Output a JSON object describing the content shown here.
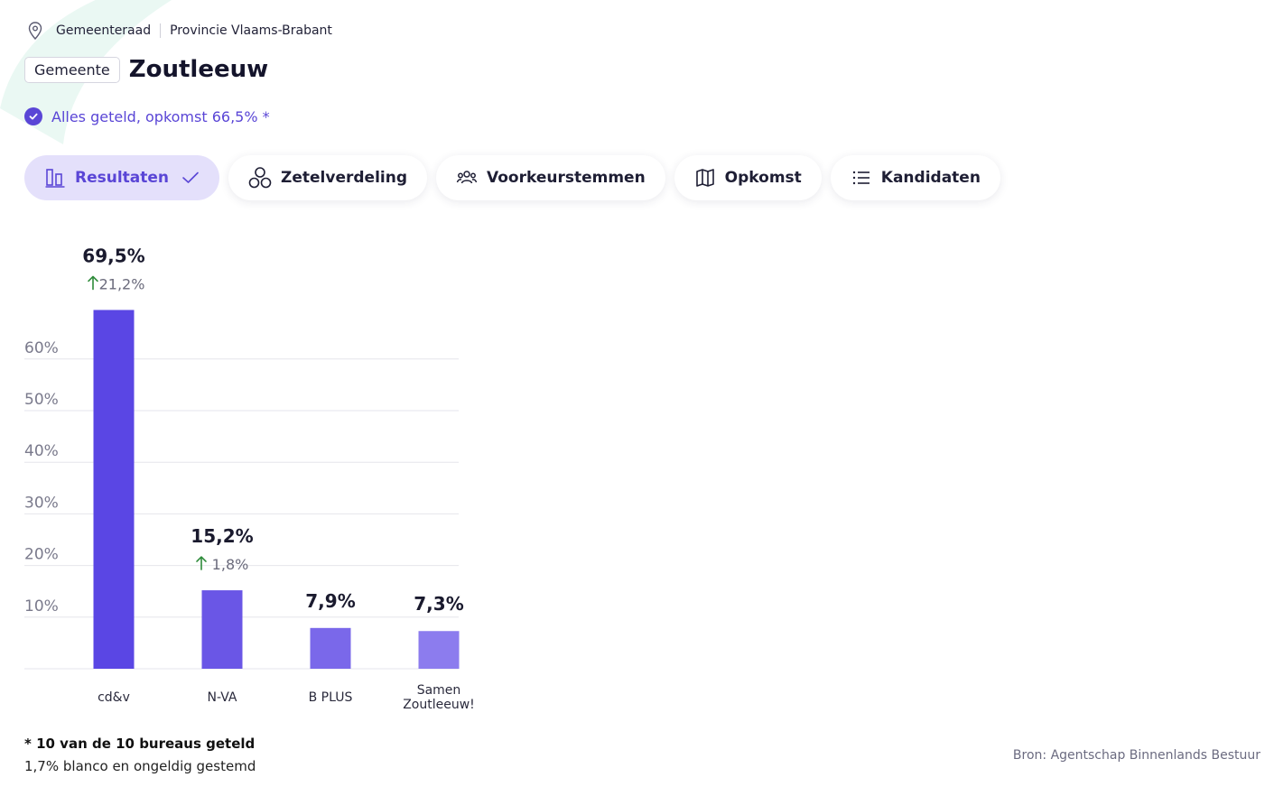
{
  "breadcrumb": {
    "level": "Gemeenteraad",
    "region": "Provincie Vlaams-Brabant"
  },
  "header": {
    "badge": "Gemeente",
    "title": "Zoutleeuw"
  },
  "status": {
    "text": "Alles geteld, opkomst 66,5% *",
    "color": "#5a46d6"
  },
  "tabs": [
    {
      "label": "Resultaten",
      "icon": "bar-chart-icon",
      "active": true
    },
    {
      "label": "Zetelverdeling",
      "icon": "circles-icon",
      "active": false
    },
    {
      "label": "Voorkeurstemmen",
      "icon": "people-icon",
      "active": false
    },
    {
      "label": "Opkomst",
      "icon": "map-icon",
      "active": false
    },
    {
      "label": "Kandidaten",
      "icon": "list-icon",
      "active": false
    }
  ],
  "chart_data": {
    "type": "bar",
    "categories": [
      "cd&v",
      "N-VA",
      "B PLUS",
      "Samen Zoutleeuw!"
    ],
    "values": [
      69.5,
      15.2,
      7.9,
      7.3
    ],
    "value_labels": [
      "69,5%",
      "15,2%",
      "7,9%",
      "7,3%"
    ],
    "change_labels": [
      "21,2%",
      "1,8%",
      "",
      ""
    ],
    "change_direction": [
      "up",
      "up",
      "",
      ""
    ],
    "bar_colors": [
      "#5a46e4",
      "#6a56e6",
      "#7a68ea",
      "#8c7cee"
    ],
    "change_color": "#2e8b3a",
    "yticks": [
      10,
      20,
      30,
      40,
      50,
      60
    ],
    "ytick_labels": [
      "10%",
      "20%",
      "30%",
      "40%",
      "50%",
      "60%"
    ],
    "ylim": [
      0,
      60
    ],
    "grid": true
  },
  "footnotes": {
    "counted": "* 10 van de 10 bureaus geteld",
    "blank": "1,7% blanco en ongeldig gestemd"
  },
  "source": "Bron: Agentschap Binnenlands Bestuur"
}
